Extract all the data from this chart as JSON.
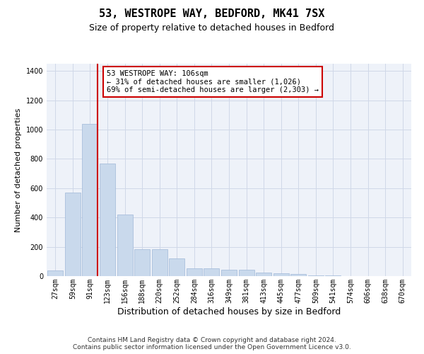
{
  "title": "53, WESTROPE WAY, BEDFORD, MK41 7SX",
  "subtitle": "Size of property relative to detached houses in Bedford",
  "xlabel": "Distribution of detached houses by size in Bedford",
  "ylabel": "Number of detached properties",
  "categories": [
    "27sqm",
    "59sqm",
    "91sqm",
    "123sqm",
    "156sqm",
    "188sqm",
    "220sqm",
    "252sqm",
    "284sqm",
    "316sqm",
    "349sqm",
    "381sqm",
    "413sqm",
    "445sqm",
    "477sqm",
    "509sqm",
    "541sqm",
    "574sqm",
    "606sqm",
    "638sqm",
    "670sqm"
  ],
  "values": [
    40,
    570,
    1040,
    770,
    420,
    185,
    185,
    120,
    55,
    55,
    45,
    45,
    25,
    20,
    15,
    5,
    3,
    2,
    0,
    0,
    0
  ],
  "bar_color": "#c9d9ec",
  "bar_edgecolor": "#a0b8d8",
  "red_line_index": 2,
  "annotation_text": "53 WESTROPE WAY: 106sqm\n← 31% of detached houses are smaller (1,026)\n69% of semi-detached houses are larger (2,303) →",
  "annotation_box_color": "#ffffff",
  "annotation_box_edgecolor": "#cc0000",
  "red_line_color": "#cc0000",
  "grid_color": "#d0d8e8",
  "background_color": "#eef2f9",
  "footer_text": "Contains HM Land Registry data © Crown copyright and database right 2024.\nContains public sector information licensed under the Open Government Licence v3.0.",
  "ylim": [
    0,
    1450
  ],
  "title_fontsize": 11,
  "subtitle_fontsize": 9,
  "xlabel_fontsize": 9,
  "ylabel_fontsize": 8,
  "tick_fontsize": 7,
  "annotation_fontsize": 7.5,
  "footer_fontsize": 6.5
}
